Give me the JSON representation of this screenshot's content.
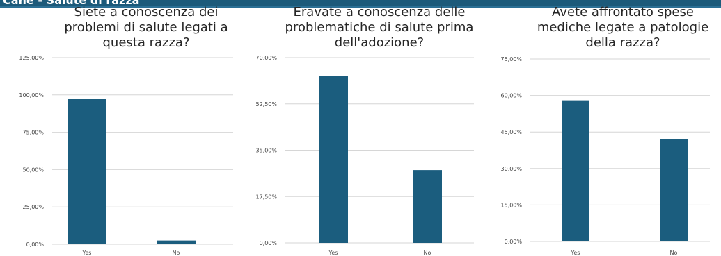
{
  "header": {
    "text": "Cane - Salute di razza"
  },
  "colors": {
    "bar": "#1b5d7e",
    "grid": "#d6d6d6",
    "header": "#1c5a7a"
  },
  "chart_data": [
    {
      "type": "bar",
      "title_lines": [
        "Siete a conoscenza dei",
        "problemi di salute legati a",
        "questa razza?"
      ],
      "categories": [
        "Yes",
        "No"
      ],
      "values": [
        97.5,
        2.5
      ],
      "ylim": [
        0,
        125
      ],
      "ytick_values": [
        0,
        25,
        50,
        75,
        100,
        125
      ],
      "ytick_labels": [
        "0,00%",
        "25,00%",
        "50,00%",
        "75,00%",
        "100,00%",
        "125,00%"
      ],
      "grid": true
    },
    {
      "type": "bar",
      "title_lines": [
        "Eravate a conoscenza delle",
        "problematiche di salute prima",
        "dell'adozione?"
      ],
      "categories": [
        "Yes",
        "No"
      ],
      "values": [
        63,
        27.5
      ],
      "ylim": [
        0,
        70
      ],
      "ytick_values": [
        0,
        17.5,
        35,
        52.5,
        70
      ],
      "ytick_labels": [
        "0,00%",
        "17,50%",
        "35,00%",
        "52,50%",
        "70,00%"
      ],
      "grid": true
    },
    {
      "type": "bar",
      "title_lines": [
        "Avete affrontato spese",
        "mediche legate a patologie",
        "della razza?"
      ],
      "categories": [
        "Yes",
        "No"
      ],
      "values": [
        58,
        42
      ],
      "ylim": [
        0,
        75
      ],
      "ytick_values": [
        0,
        15,
        30,
        45,
        60,
        75
      ],
      "ytick_labels": [
        "0,00%",
        "15,00%",
        "30,00%",
        "45,00%",
        "60,00%",
        "75,00%"
      ],
      "grid": true
    }
  ]
}
